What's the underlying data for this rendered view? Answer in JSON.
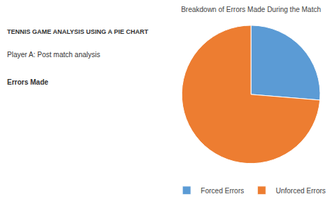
{
  "chart_data": {
    "type": "pie",
    "title": "Breakdown of Errors Made During the Match",
    "categories": [
      "Forced Errors",
      "Unforced Errors"
    ],
    "values": [
      20,
      56
    ],
    "colors": [
      "#5B9BD5",
      "#ED7D31"
    ],
    "legend": "bottom",
    "annotations": [
      "TENNIS GAME ANALYSIS USING A PIE CHART",
      "Player A: Post match analysis",
      "Errors Made"
    ]
  }
}
